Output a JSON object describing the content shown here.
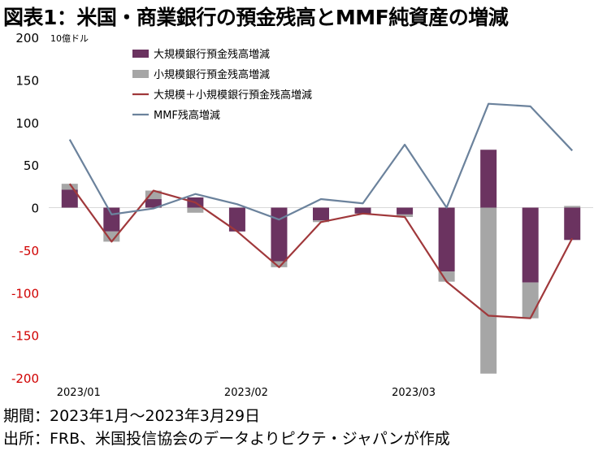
{
  "title": "図表1：米国・商業銀行の預金残高とMMF純資産の増減",
  "footer": {
    "period": "期間：2023年1月～2023年3月29日",
    "source": "出所：FRB、米国投信協会のデータよりピクテ・ジャパンが作成"
  },
  "chart_data": {
    "type": "bar",
    "unit_label": "10億ドル",
    "ylim": [
      -200,
      200
    ],
    "yticks": [
      200,
      150,
      100,
      50,
      0,
      -50,
      -100,
      -150,
      -200
    ],
    "x_tick_labels": [
      {
        "label": "2023/01",
        "index": 0
      },
      {
        "label": "2023/02",
        "index": 4
      },
      {
        "label": "2023/03",
        "index": 8
      }
    ],
    "categories_count": 13,
    "colors": {
      "large_bank": "#6b3360",
      "small_bank": "#a6a6a6",
      "total_line": "#a0383b",
      "mmf_line": "#6b829c",
      "negative_tick": "#d00000"
    },
    "series": [
      {
        "name": "大規模銀行預金残高増減",
        "kind": "bar",
        "values": [
          21,
          -28,
          10,
          12,
          -28,
          -63,
          -15,
          -7,
          -8,
          -75,
          68,
          -88,
          -38
        ]
      },
      {
        "name": "小規模銀行預金残高増減",
        "kind": "bar",
        "values": [
          7,
          -12,
          10,
          -6,
          0,
          -7,
          -2,
          0,
          -3,
          -12,
          -195,
          -42,
          2
        ]
      },
      {
        "name": "大規模＋小規模銀行預金残高増減",
        "kind": "line",
        "values": [
          28,
          -40,
          20,
          6,
          -28,
          -70,
          -17,
          -7,
          -11,
          -87,
          -127,
          -130,
          -36
        ]
      },
      {
        "name": "MMF残高増減",
        "kind": "line",
        "values": [
          80,
          -8,
          -1,
          16,
          4,
          -14,
          10,
          5,
          74,
          0,
          122,
          119,
          67
        ]
      }
    ]
  }
}
